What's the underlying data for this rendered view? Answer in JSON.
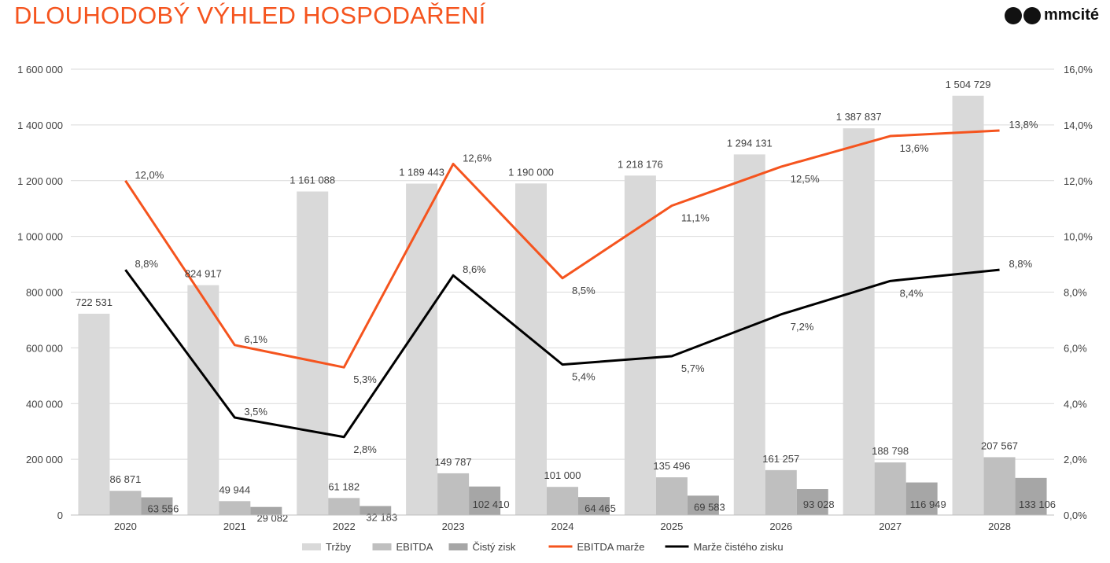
{
  "header": {
    "title": "DLOUHODOBÝ VÝHLED HOSPODAŘENÍ",
    "title_color": "#F5541E",
    "logo_text": "mmcité"
  },
  "chart_data": {
    "type": "bar",
    "categories": [
      "2020",
      "2021",
      "2022",
      "2023",
      "2024",
      "2025",
      "2026",
      "2027",
      "2028"
    ],
    "series": [
      {
        "name": "Tržby",
        "kind": "bar",
        "axis": "left",
        "color": "#D9D9D9",
        "values": [
          722531,
          824917,
          1161088,
          1189443,
          1190000,
          1218176,
          1294131,
          1387837,
          1504729
        ],
        "labels": [
          "722 531",
          "824 917",
          "1 161 088",
          "1 189 443",
          "1 190 000",
          "1 218 176",
          "1 294 131",
          "1 387 837",
          "1 504 729"
        ]
      },
      {
        "name": "EBITDA",
        "kind": "bar",
        "axis": "left",
        "color": "#BFBFBF",
        "values": [
          86871,
          49944,
          61182,
          149787,
          101000,
          135496,
          161257,
          188798,
          207567
        ],
        "labels": [
          "86 871",
          "49 944",
          "61 182",
          "149 787",
          "101 000",
          "135 496",
          "161 257",
          "188 798",
          "207 567"
        ]
      },
      {
        "name": "Čistý zisk",
        "kind": "bar",
        "axis": "left",
        "color": "#A6A6A6",
        "values": [
          63556,
          29082,
          32183,
          102410,
          64465,
          69583,
          93028,
          116949,
          133106
        ],
        "labels": [
          "63 556",
          "29 082",
          "32 183",
          "102 410",
          "64 465",
          "69 583",
          "93 028",
          "116 949",
          "133 106"
        ]
      },
      {
        "name": "EBITDA marže",
        "kind": "line",
        "axis": "right",
        "color": "#F5541E",
        "values": [
          12.0,
          6.1,
          5.3,
          12.6,
          8.5,
          11.1,
          12.5,
          13.6,
          13.8
        ],
        "labels": [
          "12,0%",
          "6,1%",
          "5,3%",
          "12,6%",
          "8,5%",
          "11,1%",
          "12,5%",
          "13,6%",
          "13,8%"
        ]
      },
      {
        "name": "Marže čistého zisku",
        "kind": "line",
        "axis": "right",
        "color": "#000000",
        "values": [
          8.8,
          3.5,
          2.8,
          8.6,
          5.4,
          5.7,
          7.2,
          8.4,
          8.8
        ],
        "labels": [
          "8,8%",
          "3,5%",
          "2,8%",
          "8,6%",
          "5,4%",
          "5,7%",
          "7,2%",
          "8,4%",
          "8,8%"
        ]
      }
    ],
    "y_left": {
      "min": 0,
      "max": 1600000,
      "ticks": [
        "0",
        "200 000",
        "400 000",
        "600 000",
        "800 000",
        "1 000 000",
        "1 200 000",
        "1 400 000",
        "1 600 000"
      ]
    },
    "y_right": {
      "min": 0,
      "max": 16,
      "ticks": [
        "0,0%",
        "2,0%",
        "4,0%",
        "6,0%",
        "8,0%",
        "10,0%",
        "12,0%",
        "14,0%",
        "16,0%"
      ]
    },
    "grid": true,
    "legend_position": "bottom"
  }
}
